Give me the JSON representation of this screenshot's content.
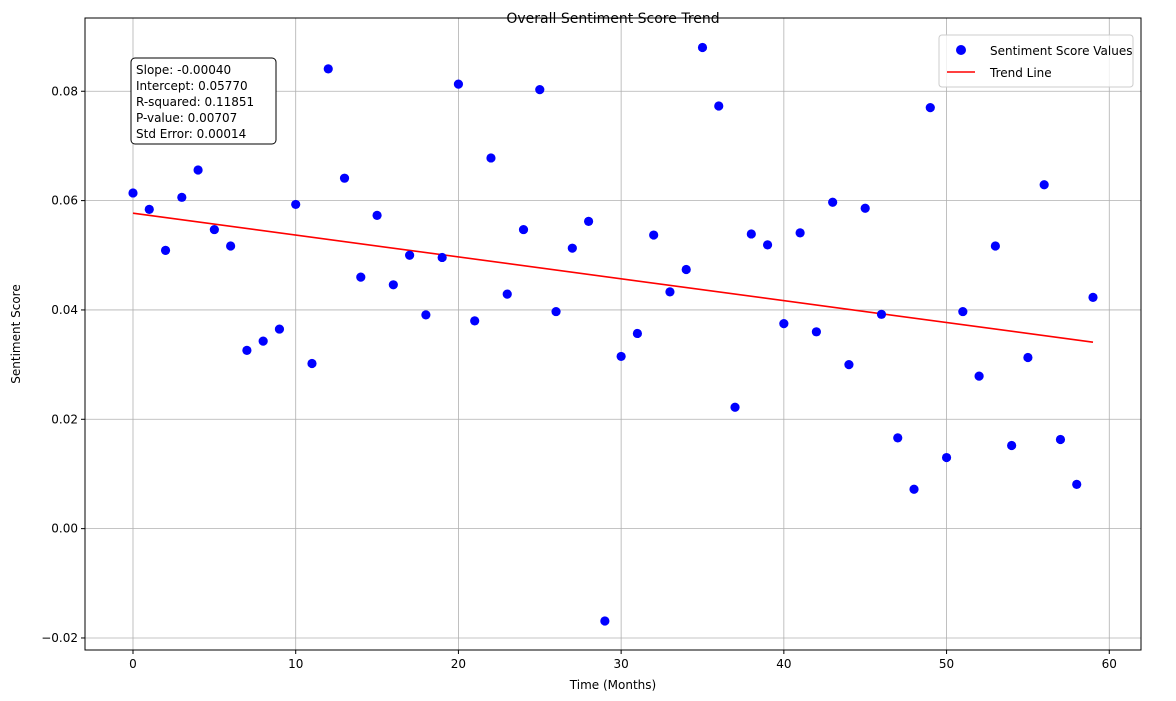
{
  "chart_data": {
    "type": "scatter",
    "title": "Overall Sentiment Score Trend",
    "xlabel": "Time (Months)",
    "ylabel": "Sentiment Score",
    "xlim": [
      -2.95,
      61.95
    ],
    "ylim": [
      -0.0222,
      0.0934
    ],
    "xticks": [
      0,
      10,
      20,
      30,
      40,
      50,
      60
    ],
    "yticks": [
      -0.02,
      0.0,
      0.02,
      0.04,
      0.06,
      0.08
    ],
    "xtick_labels": [
      "0",
      "10",
      "20",
      "30",
      "40",
      "50",
      "60"
    ],
    "ytick_labels": [
      "−0.02",
      "0.00",
      "0.02",
      "0.04",
      "0.06",
      "0.08"
    ],
    "grid": true,
    "legend_position": "top-right",
    "series": [
      {
        "name": "Sentiment Score Values",
        "kind": "scatter",
        "color": "#0000ff",
        "x": [
          0,
          1,
          2,
          3,
          4,
          5,
          6,
          7,
          8,
          9,
          10,
          11,
          12,
          13,
          14,
          15,
          16,
          17,
          18,
          19,
          20,
          21,
          22,
          23,
          24,
          25,
          26,
          27,
          28,
          29,
          30,
          31,
          32,
          33,
          34,
          35,
          36,
          37,
          38,
          39,
          40,
          41,
          42,
          43,
          44,
          45,
          46,
          47,
          48,
          49,
          50,
          51,
          52,
          53,
          54,
          55,
          56,
          57,
          58,
          59
        ],
        "y": [
          0.0614,
          0.0584,
          0.0509,
          0.0606,
          0.0656,
          0.0547,
          0.0517,
          0.0326,
          0.0343,
          0.0365,
          0.0593,
          0.0302,
          0.0841,
          0.0641,
          0.046,
          0.0573,
          0.0446,
          0.05,
          0.0391,
          0.0496,
          0.0813,
          0.038,
          0.0678,
          0.0429,
          0.0547,
          0.0803,
          0.0397,
          0.0513,
          0.0562,
          -0.0169,
          0.0315,
          0.0357,
          0.0537,
          0.0433,
          0.0474,
          0.088,
          0.0773,
          0.0222,
          0.0539,
          0.0519,
          0.0375,
          0.0541,
          0.036,
          0.0597,
          0.03,
          0.0586,
          0.0392,
          0.0166,
          0.0072,
          0.077,
          0.013,
          0.0397,
          0.0279,
          0.0517,
          0.0152,
          0.0313,
          0.0629,
          0.0163,
          0.0081,
          0.0423
        ]
      },
      {
        "name": "Trend Line",
        "kind": "line",
        "color": "#ff0000",
        "x": [
          0,
          59
        ],
        "y": [
          0.0577,
          0.0341
        ]
      }
    ],
    "annotation": {
      "lines": [
        "Slope: -0.00040",
        "Intercept: 0.05770",
        "R-squared: 0.11851",
        "P-value: 0.00707",
        "Std Error: 0.00014"
      ]
    }
  }
}
